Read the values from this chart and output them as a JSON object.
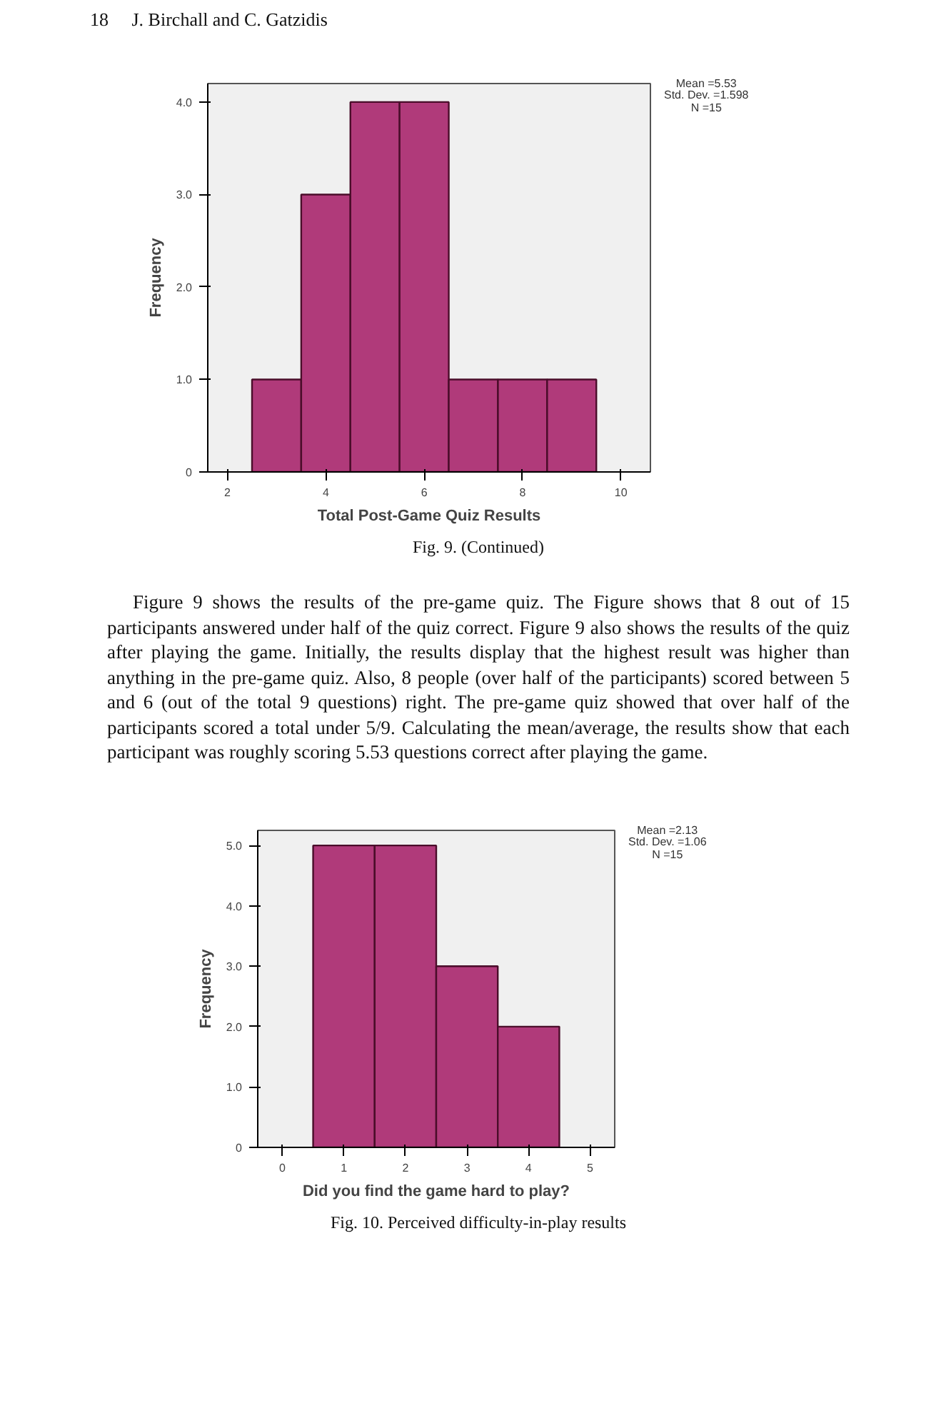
{
  "chart_data": [
    {
      "type": "histogram",
      "xlabel": "Total Post-Game Quiz Results",
      "ylabel": "Frequency",
      "bins": [
        2.5,
        3.5,
        4.5,
        5.5,
        6.5,
        7.5,
        8.5,
        9.5
      ],
      "values": [
        1,
        3,
        4,
        4,
        1,
        1,
        1
      ],
      "color": "#b03a7a",
      "xlim": [
        1.6,
        10.6
      ],
      "xticks": [
        2,
        4,
        6,
        8,
        10
      ],
      "ylim": [
        0,
        4.2
      ],
      "yticks": [
        {
          "value": 0,
          "label": "0"
        },
        {
          "value": 1,
          "label": "1.0"
        },
        {
          "value": 2,
          "label": "2.0"
        },
        {
          "value": 3,
          "label": "3.0"
        },
        {
          "value": 4,
          "label": "4.0"
        }
      ],
      "grid": false,
      "annotations": [
        "18     J. Birchall and C. Gatzidis",
        "Mean =5.53",
        "Std. Dev. =1.598",
        "N =15",
        "Fig. 9. (Continued)",
        "Figure 9 shows the results of the pre-game quiz. The Figure shows that 8 out of 15 participants answered under half of the quiz correct. Figure 9 also shows the results of the quiz after playing the game. Initially, the results display that the highest result was higher than anything in the pre-game quiz. Also, 8 people (over half of the participants) scored between 5 and 6 (out of the total 9 questions) right. The pre-game quiz showed that over half of the participants scored a total under 5/9. Calculating the mean/average, the results show that each participant was roughly scoring 5.53 questions correct after playing the game."
      ]
    },
    {
      "type": "histogram",
      "xlabel": "Did you find the game hard to play?",
      "ylabel": "Frequency",
      "bins": [
        0.5,
        1.5,
        2.5,
        3.5,
        4.5
      ],
      "values": [
        5,
        5,
        3,
        2
      ],
      "color": "#b03a7a",
      "xlim": [
        -0.4,
        5.4
      ],
      "xticks": [
        0,
        1,
        2,
        3,
        4,
        5
      ],
      "ylim": [
        0,
        5.25
      ],
      "yticks": [
        {
          "value": 0,
          "label": "0"
        },
        {
          "value": 1,
          "label": "1.0"
        },
        {
          "value": 2,
          "label": "2.0"
        },
        {
          "value": 3,
          "label": "3.0"
        },
        {
          "value": 4,
          "label": "4.0"
        },
        {
          "value": 5,
          "label": "5.0"
        }
      ],
      "grid": false,
      "annotations": [
        "Mean =2.13",
        "Std. Dev. =1.06",
        "N =15",
        "Fig. 10. Perceived difficulty-in-play results"
      ]
    }
  ]
}
